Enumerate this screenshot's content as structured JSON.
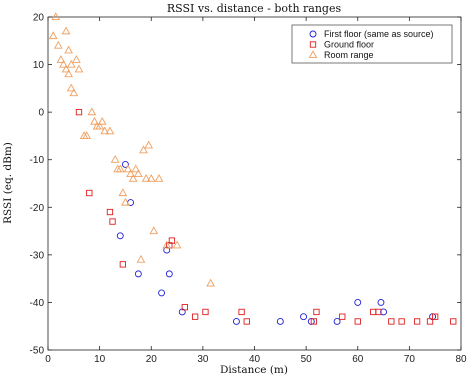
{
  "chart_data": {
    "type": "scatter",
    "title": "RSSI vs. distance - both ranges",
    "xlabel": "Distance (m)",
    "ylabel": "RSSI (eq. dBm)",
    "xlim": [
      0,
      80
    ],
    "ylim": [
      -50,
      20
    ],
    "xticks": [
      "0",
      "10",
      "20",
      "30",
      "40",
      "50",
      "60",
      "70",
      "80"
    ],
    "yticks": [
      "20",
      "10",
      "0",
      "-10",
      "-20",
      "-30",
      "-40",
      "-50"
    ],
    "grid": false,
    "legend_position": "top-right",
    "series": [
      {
        "name": "First floor (same as source)",
        "marker": "circle",
        "color": "#1f1fd6",
        "points": [
          [
            15.0,
            -11
          ],
          [
            16.0,
            -19
          ],
          [
            14.0,
            -26
          ],
          [
            17.5,
            -34
          ],
          [
            22.0,
            -38
          ],
          [
            23.0,
            -29
          ],
          [
            23.5,
            -34
          ],
          [
            26.0,
            -42
          ],
          [
            36.5,
            -44
          ],
          [
            45.0,
            -44
          ],
          [
            49.5,
            -43
          ],
          [
            51.0,
            -44
          ],
          [
            56.0,
            -44
          ],
          [
            60.0,
            -40
          ],
          [
            64.5,
            -40
          ],
          [
            65.0,
            -42
          ],
          [
            74.5,
            -43
          ]
        ]
      },
      {
        "name": "Ground floor",
        "marker": "square",
        "color": "#dd1f1f",
        "points": [
          [
            6.0,
            0
          ],
          [
            8.0,
            -17
          ],
          [
            12.0,
            -21
          ],
          [
            12.5,
            -23
          ],
          [
            14.5,
            -32
          ],
          [
            23.5,
            -28
          ],
          [
            24.0,
            -27
          ],
          [
            26.5,
            -41
          ],
          [
            28.5,
            -43
          ],
          [
            30.5,
            -42
          ],
          [
            37.5,
            -42
          ],
          [
            38.5,
            -44
          ],
          [
            51.5,
            -44
          ],
          [
            52.0,
            -42
          ],
          [
            57.0,
            -43
          ],
          [
            60.0,
            -44
          ],
          [
            63.0,
            -42
          ],
          [
            64.0,
            -42
          ],
          [
            66.5,
            -44
          ],
          [
            68.5,
            -44
          ],
          [
            71.5,
            -44
          ],
          [
            74.0,
            -44
          ],
          [
            75.0,
            -43
          ],
          [
            78.5,
            -44
          ]
        ]
      },
      {
        "name": "Room range",
        "marker": "triangle",
        "color": "#f0a060",
        "points": [
          [
            1.0,
            16
          ],
          [
            1.5,
            20
          ],
          [
            2.0,
            14
          ],
          [
            2.5,
            11
          ],
          [
            3.0,
            10
          ],
          [
            3.5,
            9
          ],
          [
            3.5,
            17
          ],
          [
            4.0,
            13
          ],
          [
            4.0,
            8
          ],
          [
            4.5,
            10
          ],
          [
            4.5,
            5
          ],
          [
            5.0,
            4
          ],
          [
            5.5,
            11
          ],
          [
            6.0,
            9
          ],
          [
            7.0,
            -5
          ],
          [
            7.5,
            -5
          ],
          [
            8.5,
            0
          ],
          [
            9.0,
            -2
          ],
          [
            9.5,
            -3
          ],
          [
            10.0,
            -3
          ],
          [
            10.5,
            -2
          ],
          [
            11.0,
            -4
          ],
          [
            12.0,
            -4
          ],
          [
            13.0,
            -10
          ],
          [
            13.5,
            -12
          ],
          [
            14.0,
            -12
          ],
          [
            14.5,
            -17
          ],
          [
            15.0,
            -19
          ],
          [
            15.5,
            -12
          ],
          [
            16.0,
            -13
          ],
          [
            16.5,
            -14
          ],
          [
            17.0,
            -12
          ],
          [
            17.5,
            -13
          ],
          [
            18.0,
            -31
          ],
          [
            18.5,
            -8
          ],
          [
            19.0,
            -14
          ],
          [
            19.5,
            -7
          ],
          [
            20.0,
            -14
          ],
          [
            20.5,
            -25
          ],
          [
            21.5,
            -14
          ],
          [
            23.0,
            -28
          ],
          [
            25.0,
            -28
          ],
          [
            31.5,
            -36
          ]
        ]
      }
    ]
  }
}
